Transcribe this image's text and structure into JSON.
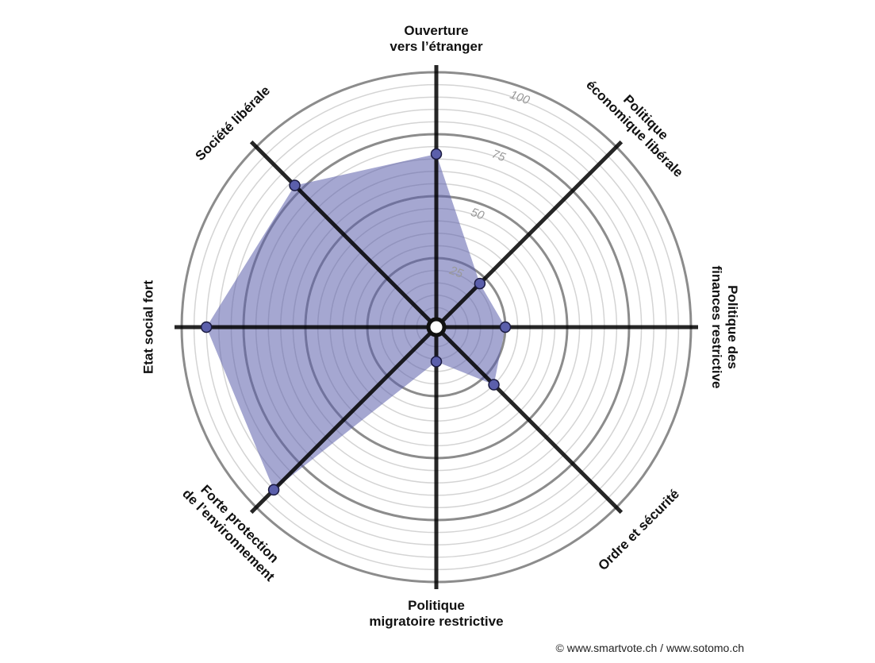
{
  "chart_data": {
    "type": "radar",
    "categories": [
      "Ouverture\nvers l’étranger",
      "Politique\néconomique libérale",
      "Politique des\nfinances restrictive",
      "Ordre et sécurité",
      "Politique\nmigratoire restrictive",
      "Forte protection\nde l’environnement",
      "Etat social fort",
      "Société libérale"
    ],
    "series": [
      {
        "color": "#5b5fab",
        "values": [
          67,
          22,
          25,
          30,
          11,
          90,
          90,
          78
        ]
      }
    ],
    "rlim": [
      0,
      100
    ],
    "rticks": [
      25,
      50,
      75,
      100
    ],
    "grid": true,
    "source": "© www.smartvote.ch / www.sotomo.ch"
  }
}
